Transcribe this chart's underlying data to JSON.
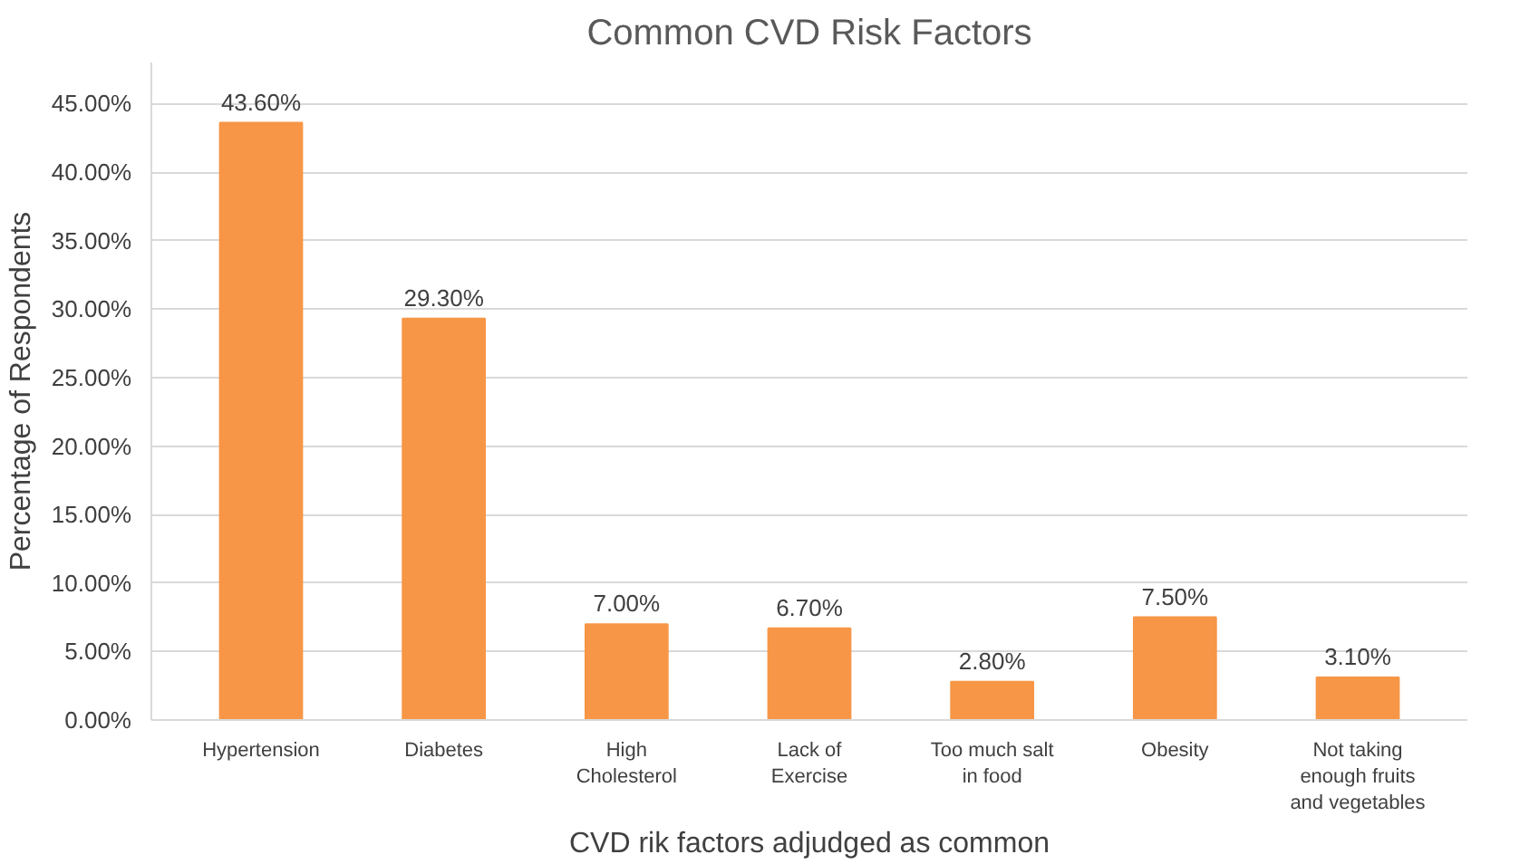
{
  "chart_data": {
    "type": "bar",
    "title": "Common CVD Risk Factors",
    "xlabel": "CVD rik factors adjudged as common",
    "ylabel": "Percentage of Respondents",
    "categories": [
      "Hypertension",
      "Diabetes",
      "High Cholesterol",
      "Lack of Exercise",
      "Too much salt in food",
      "Obesity",
      "Not taking enough fruits and vegetables"
    ],
    "values": [
      43.6,
      29.3,
      7.0,
      6.7,
      2.8,
      7.5,
      3.1
    ],
    "value_labels": [
      "43.60%",
      "29.30%",
      "7.00%",
      "6.70%",
      "2.80%",
      "7.50%",
      "3.10%"
    ],
    "color": "#f79646",
    "ylim": [
      0,
      48
    ],
    "yticks": [
      {
        "value": 0,
        "label": "0.00%"
      },
      {
        "value": 5,
        "label": "5.00%"
      },
      {
        "value": 10,
        "label": "10.00%"
      },
      {
        "value": 15,
        "label": "15.00%"
      },
      {
        "value": 20,
        "label": "20.00%"
      },
      {
        "value": 25,
        "label": "25.00%"
      },
      {
        "value": 30,
        "label": "30.00%"
      },
      {
        "value": 35,
        "label": "35.00%"
      },
      {
        "value": 40,
        "label": "40.00%"
      },
      {
        "value": 45,
        "label": "45.00%"
      }
    ],
    "grid": "y"
  }
}
